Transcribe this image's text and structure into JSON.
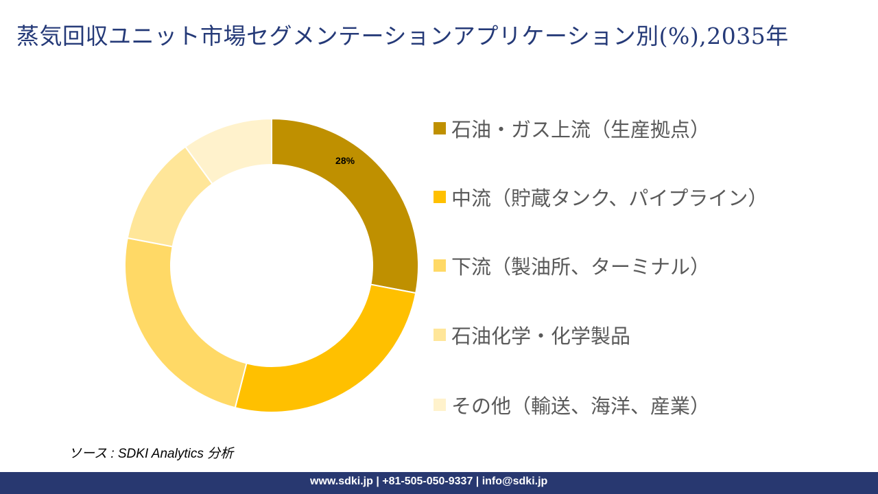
{
  "title": "蒸気回収ユニット市場セグメンテーションアプリケーション別(%),2035年",
  "chart_data": {
    "type": "pie",
    "variant": "donut",
    "categories": [
      "石油・ガス上流（生産拠点）",
      "中流（貯蔵タンク、パイプライン）",
      "下流（製油所、ターミナル）",
      "石油化学・化学製品",
      "その他（輸送、海洋、産業）"
    ],
    "values": [
      28,
      26,
      24,
      12,
      10
    ],
    "data_labels": [
      "28%",
      "",
      "",
      "",
      ""
    ],
    "colors": [
      "#BF9000",
      "#FFC000",
      "#FFD966",
      "#FFE699",
      "#FFF2CC"
    ],
    "legend_position": "right"
  },
  "source": "ソース : SDKI Analytics 分析",
  "footer": "www.sdki.jp | +81-505-050-9337 | info@sdki.jp"
}
